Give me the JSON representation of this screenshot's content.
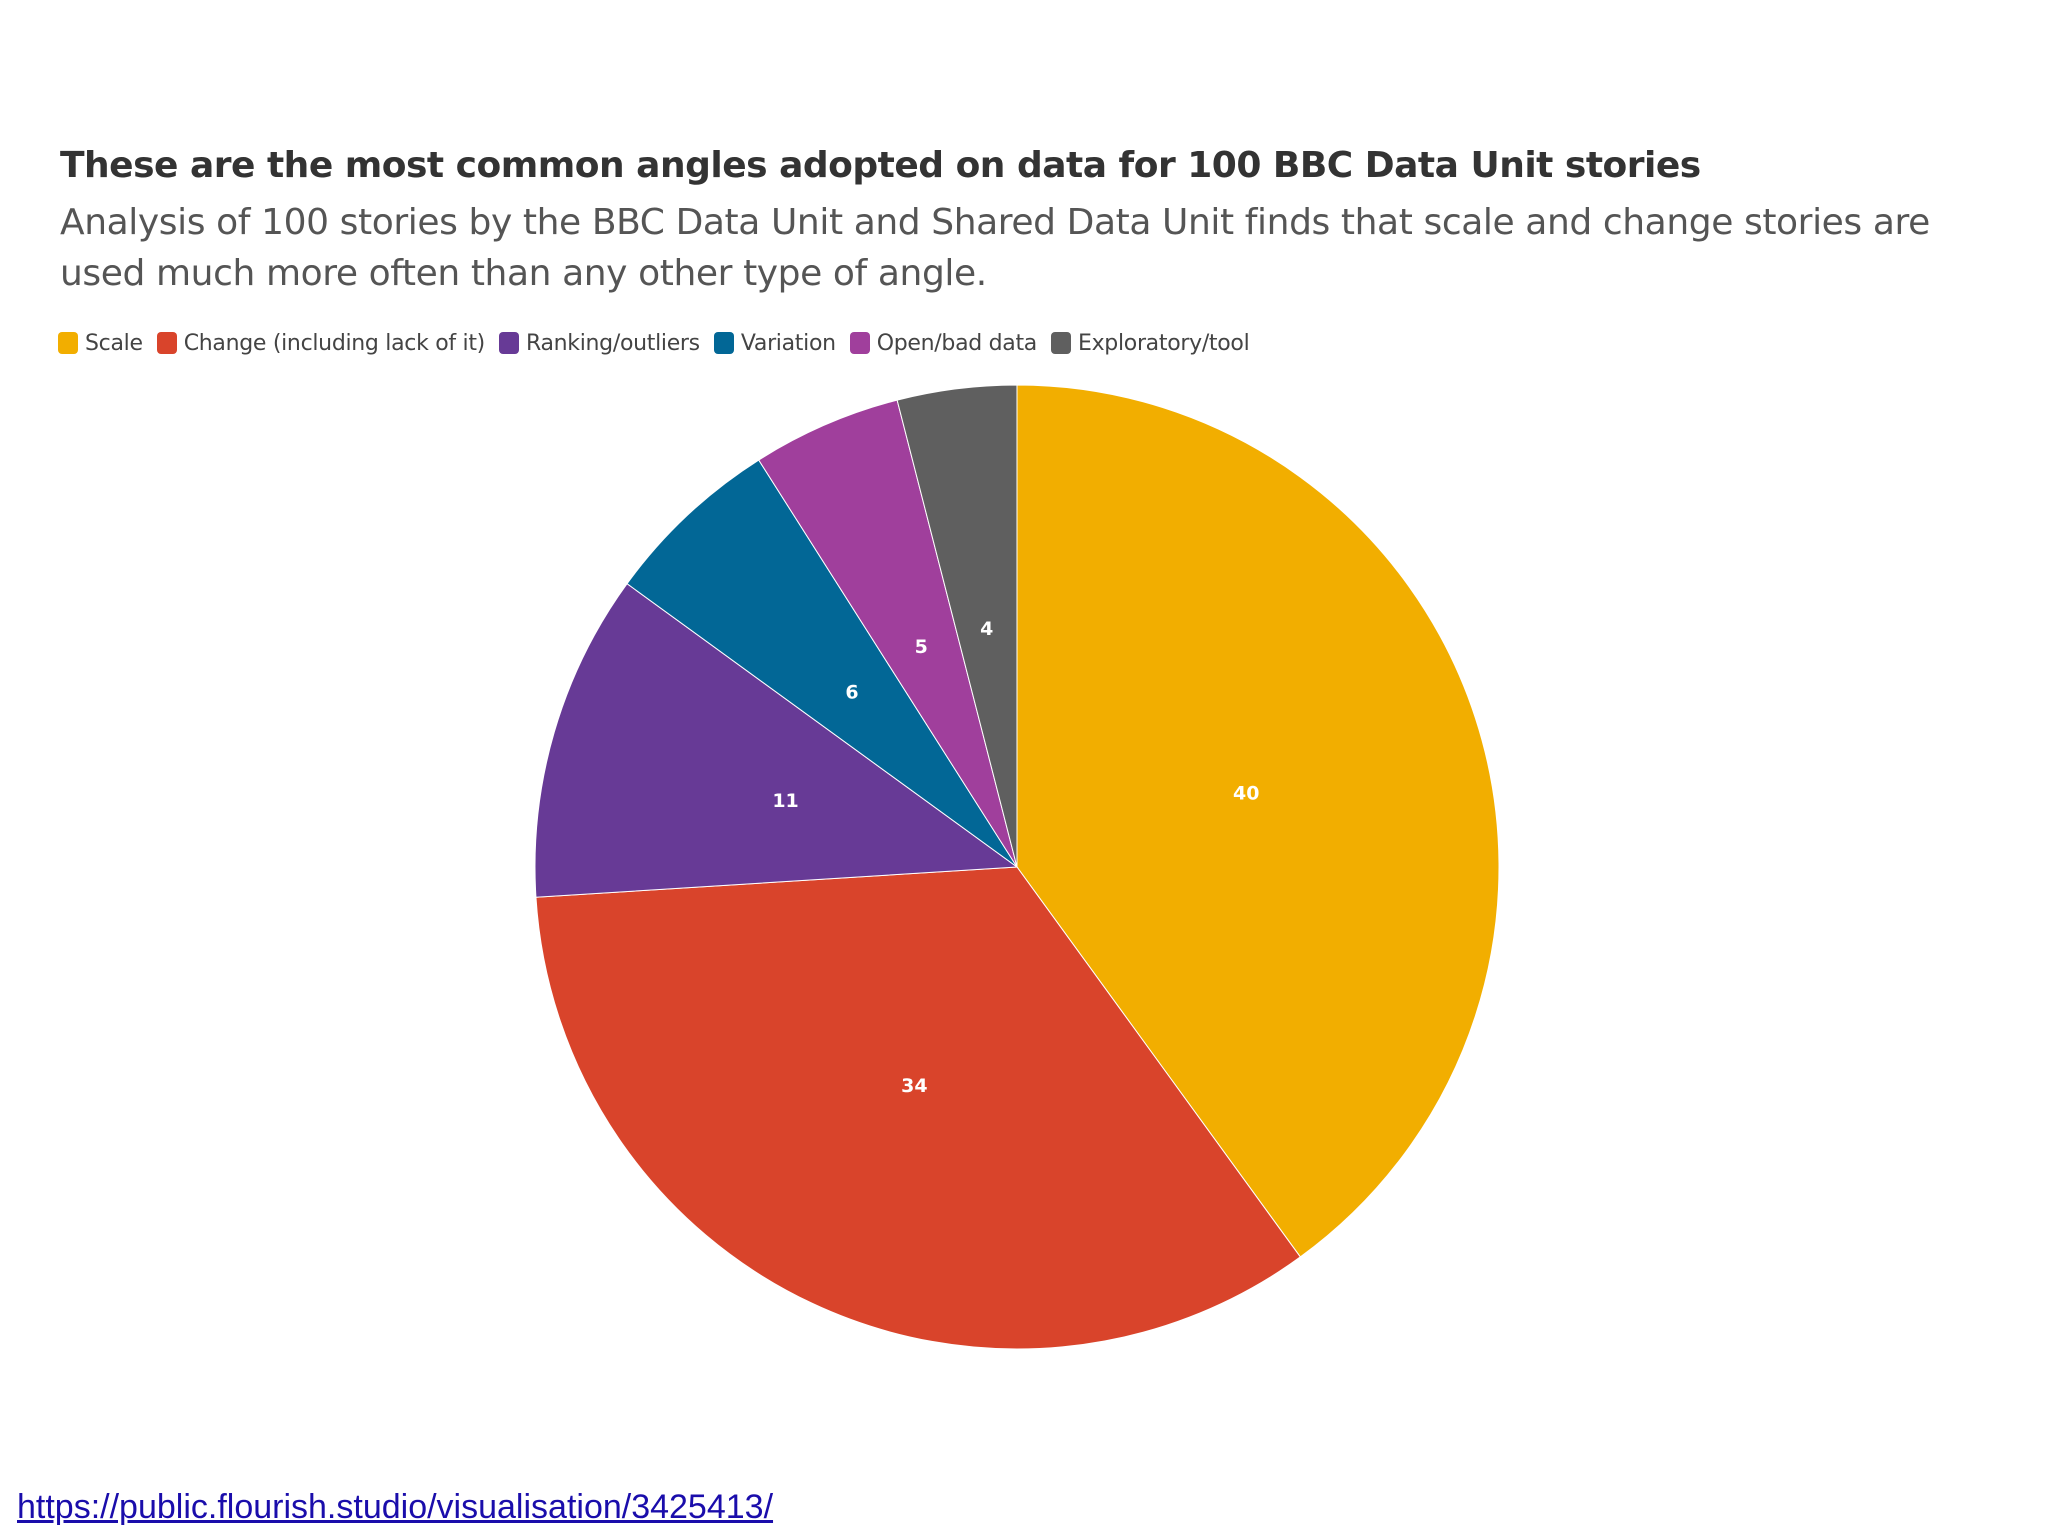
{
  "chart_data": {
    "type": "pie",
    "title": "These are the most common angles adopted on data for 100 BBC Data Unit stories",
    "subtitle": "Analysis of 100 stories by the BBC Data Unit and Shared Data Unit finds that scale and change stories are used much more often than any other type of angle.",
    "legend_placement": "top-left",
    "slices": [
      {
        "name": "Scale",
        "value": 40,
        "color": "#f2ae00"
      },
      {
        "name": "Change (including lack of it)",
        "value": 34,
        "color": "#d9442b"
      },
      {
        "name": "Ranking/outliers",
        "value": 11,
        "color": "#673a96"
      },
      {
        "name": "Variation",
        "value": 6,
        "color": "#026796"
      },
      {
        "name": "Open/bad data",
        "value": 5,
        "color": "#a03f9c"
      },
      {
        "name": "Exploratory/tool",
        "value": 4,
        "color": "#5f5f5f"
      }
    ]
  },
  "source": {
    "link_text": "https://public.flourish.studio/visualisation/3425413/"
  }
}
